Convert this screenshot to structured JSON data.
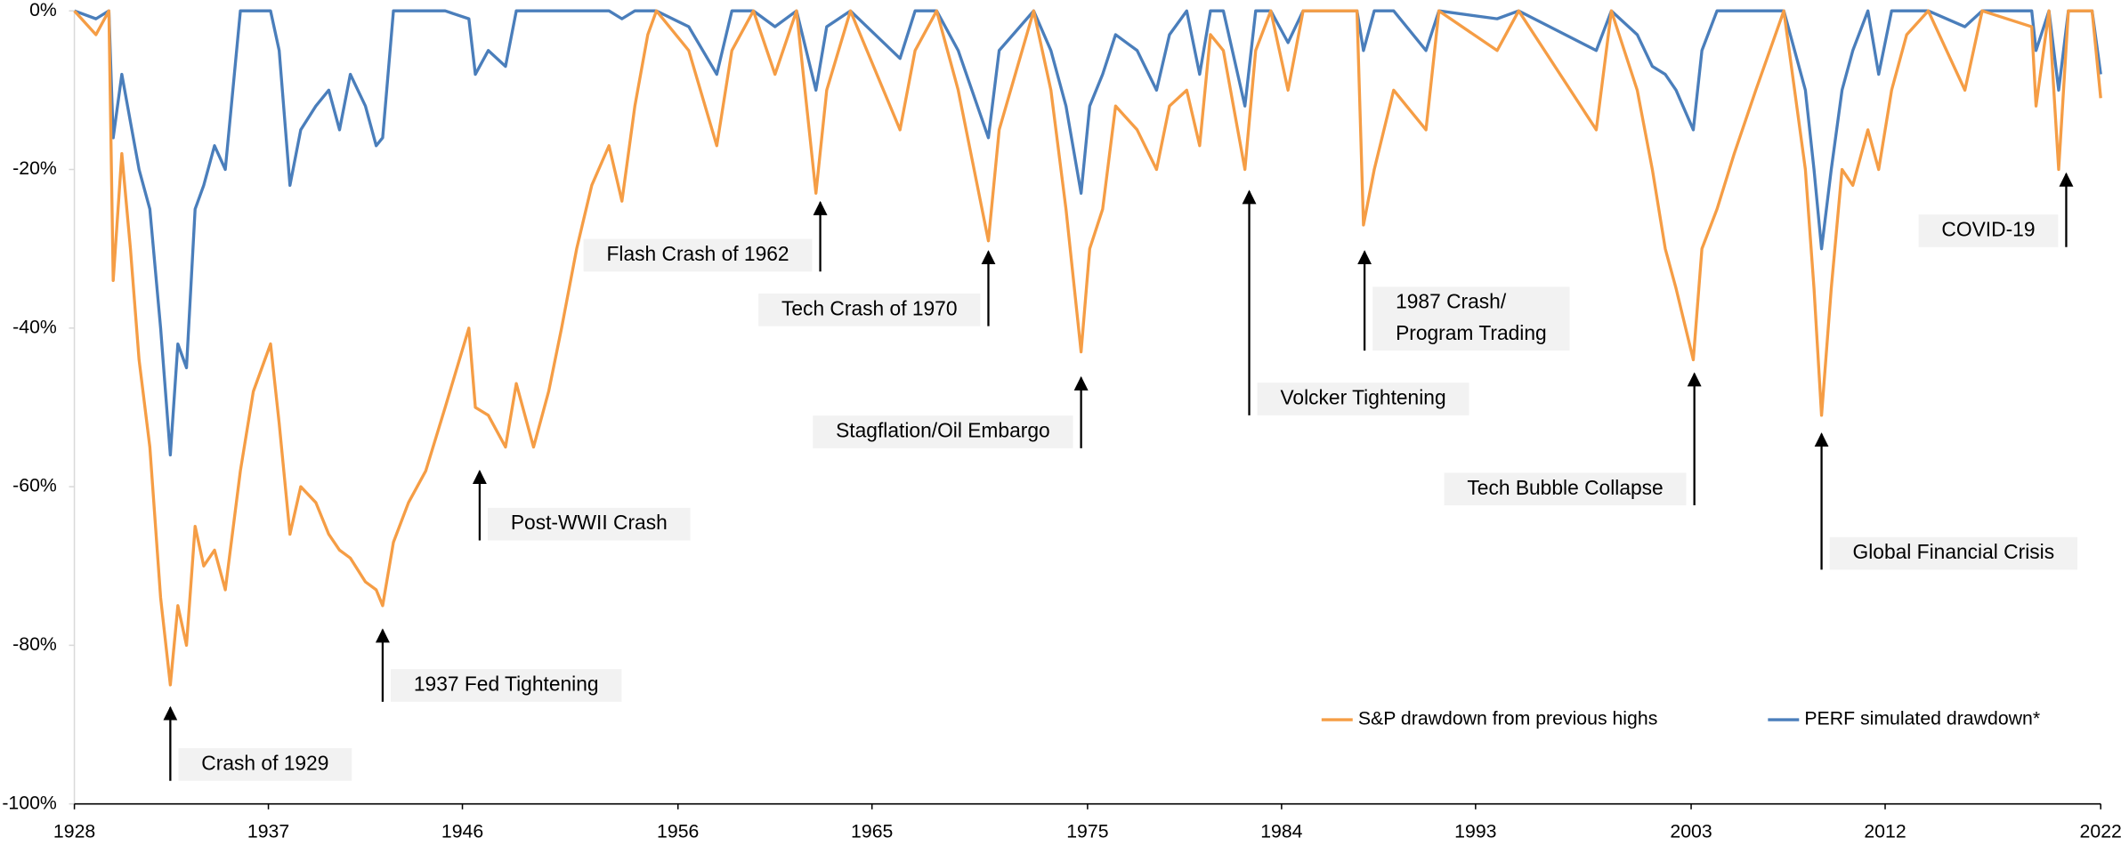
{
  "chart_data": {
    "type": "line",
    "x": [
      1928,
      1929,
      1929.6,
      1929.8,
      1930.2,
      1930.6,
      1931,
      1931.5,
      1932,
      1932.45,
      1932.8,
      1933.2,
      1933.6,
      1934,
      1934.5,
      1935,
      1935.7,
      1936.3,
      1937.1,
      1937.5,
      1938,
      1938.5,
      1939.2,
      1939.8,
      1940.3,
      1940.8,
      1941.5,
      1942,
      1942.3,
      1942.8,
      1943.5,
      1944.3,
      1945.2,
      1946.3,
      1946.6,
      1947.2,
      1948,
      1948.5,
      1949.3,
      1950,
      1950.6,
      1951.3,
      1952,
      1952.8,
      1953.4,
      1954,
      1954.6,
      1955,
      1956.5,
      1957.8,
      1958.5,
      1959.5,
      1960.5,
      1961.5,
      1962.4,
      1962.9,
      1964,
      1966.3,
      1967,
      1968,
      1969,
      1970.4,
      1970.9,
      1972.5,
      1973.3,
      1974,
      1974.7,
      1975.1,
      1975.7,
      1976.3,
      1977.3,
      1978.2,
      1978.8,
      1979.6,
      1980.2,
      1980.7,
      1981.3,
      1982.3,
      1982.8,
      1983.5,
      1984.3,
      1985,
      1987.5,
      1987.8,
      1988.3,
      1989.2,
      1990.7,
      1991.3,
      1994,
      1995,
      1998.6,
      1999.3,
      2000.5,
      2001.2,
      2001.8,
      2002.3,
      2003.1,
      2003.5,
      2004.2,
      2005,
      2006,
      2007.3,
      2008.3,
      2008.7,
      2009.05,
      2009.5,
      2010,
      2010.5,
      2011.2,
      2011.7,
      2012.3,
      2013,
      2014,
      2015.7,
      2016.5,
      2018.8,
      2019,
      2019.6,
      2020.05,
      2020.5,
      2021.6,
      2022
    ],
    "series": [
      {
        "name": "S&P drawdown from previous highs",
        "color": "#f59d45",
        "values": [
          0,
          -3,
          0,
          -34,
          -18,
          -30,
          -44,
          -55,
          -74,
          -85,
          -75,
          -80,
          -65,
          -70,
          -68,
          -73,
          -58,
          -48,
          -42,
          -52,
          -66,
          -60,
          -62,
          -66,
          -68,
          -69,
          -72,
          -73,
          -75,
          -67,
          -62,
          -58,
          -50,
          -40,
          -50,
          -51,
          -55,
          -47,
          -55,
          -48,
          -40,
          -30,
          -22,
          -17,
          -24,
          -12,
          -3,
          0,
          -5,
          -17,
          -5,
          0,
          -8,
          0,
          -23,
          -10,
          0,
          -15,
          -5,
          0,
          -10,
          -29,
          -15,
          0,
          -10,
          -25,
          -43,
          -30,
          -25,
          -12,
          -15,
          -20,
          -12,
          -10,
          -17,
          -3,
          -5,
          -20,
          -5,
          0,
          -10,
          0,
          0,
          -27,
          -20,
          -10,
          -15,
          0,
          -5,
          0,
          -15,
          0,
          -10,
          -20,
          -30,
          -35,
          -44,
          -30,
          -25,
          -18,
          -10,
          0,
          -20,
          -35,
          -51,
          -35,
          -20,
          -22,
          -15,
          -20,
          -10,
          -3,
          0,
          -10,
          0,
          -2,
          -12,
          0,
          -20,
          0,
          0,
          -11
        ]
      },
      {
        "name": "PERF simulated drawdown*",
        "color": "#4a7ebb",
        "values": [
          0,
          -1,
          0,
          -16,
          -8,
          -14,
          -20,
          -25,
          -40,
          -56,
          -42,
          -45,
          -25,
          -22,
          -17,
          -20,
          0,
          0,
          0,
          -5,
          -22,
          -15,
          -12,
          -10,
          -15,
          -8,
          -12,
          -17,
          -16,
          0,
          0,
          0,
          0,
          -1,
          -8,
          -5,
          -7,
          0,
          0,
          0,
          0,
          0,
          0,
          0,
          -1,
          0,
          0,
          0,
          -2,
          -8,
          0,
          0,
          -2,
          0,
          -10,
          -2,
          0,
          -6,
          0,
          0,
          -5,
          -16,
          -5,
          0,
          -5,
          -12,
          -23,
          -12,
          -8,
          -3,
          -5,
          -10,
          -3,
          0,
          -8,
          0,
          0,
          -12,
          0,
          0,
          -4,
          0,
          0,
          -5,
          0,
          0,
          -5,
          0,
          -1,
          0,
          -5,
          0,
          -3,
          -7,
          -8,
          -10,
          -15,
          -5,
          0,
          0,
          0,
          0,
          -10,
          -20,
          -30,
          -20,
          -10,
          -5,
          0,
          -8,
          0,
          0,
          0,
          -2,
          0,
          0,
          -5,
          0,
          -10,
          0,
          0,
          -8
        ]
      }
    ],
    "xlim": [
      1928,
      2022
    ],
    "xticks": [
      1928,
      1937,
      1946,
      1956,
      1965,
      1975,
      1984,
      1993,
      2003,
      2012,
      2022
    ],
    "ylim": [
      -100,
      0
    ],
    "yticks": [
      {
        "value": -100,
        "label": "-100%"
      },
      {
        "value": -80,
        "label": "-80%"
      },
      {
        "value": -60,
        "label": "-60%"
      },
      {
        "value": -40,
        "label": "-40%"
      },
      {
        "value": -20,
        "label": "-20%"
      },
      {
        "value": 0,
        "label": "0%"
      }
    ],
    "grid": false,
    "legend": "lower right",
    "annotations": [
      {
        "text": "Crash of 1929",
        "x": 1932.45,
        "y": -87.5
      },
      {
        "text": "1937 Fed Tightening",
        "x": 1942.3,
        "y": -77.7
      },
      {
        "text": "Post-WWII Crash",
        "x": 1946.8,
        "y": -57.7
      },
      {
        "text": "Flash Crash of 1962",
        "x": 1962.6,
        "y": -23.8
      },
      {
        "text": "Tech Crash of 1970",
        "x": 1970.4,
        "y": -30
      },
      {
        "text": "Stagflation/Oil Embargo",
        "x": 1974.7,
        "y": -45.9
      },
      {
        "text": "Volcker Tightening",
        "x": 1982.5,
        "y": -22.4
      },
      {
        "text": [
          "1987 Crash/",
          "Program Trading"
        ],
        "x": 1987.85,
        "y": -30
      },
      {
        "text": "Tech Bubble Collapse",
        "x": 2003.15,
        "y": -45.4
      },
      {
        "text": "Global Financial Crisis",
        "x": 2009.05,
        "y": -53
      },
      {
        "text": "COVID-19",
        "x": 2020.4,
        "y": -20.2
      }
    ]
  }
}
